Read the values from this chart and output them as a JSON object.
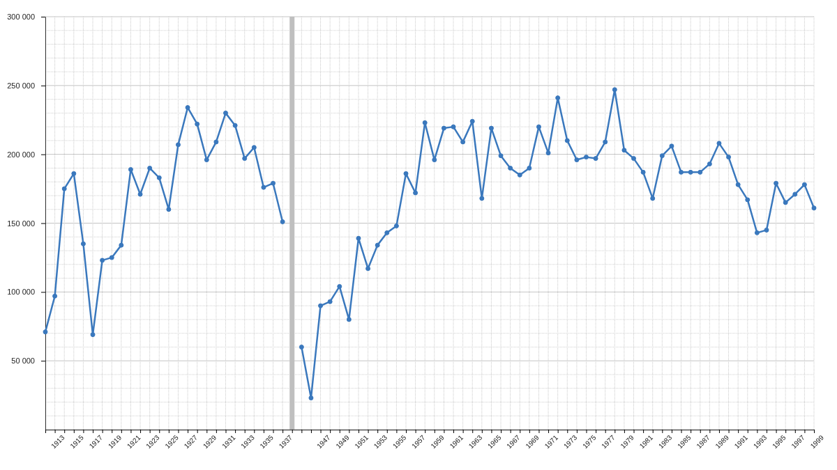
{
  "chart_data": {
    "type": "line",
    "categories": [
      null,
      "1913",
      null,
      "1915",
      null,
      "1917",
      null,
      "1919",
      null,
      "1921",
      null,
      "1923",
      null,
      "1925",
      null,
      "1927",
      null,
      "1929",
      null,
      "1931",
      null,
      "1933",
      null,
      "1935",
      null,
      "1937",
      null,
      null,
      null,
      "1947",
      null,
      "1949",
      null,
      "1951",
      null,
      "1953",
      null,
      "1955",
      null,
      "1957",
      null,
      "1959",
      null,
      "1961",
      null,
      "1963",
      null,
      "1965",
      null,
      "1967",
      null,
      "1969",
      null,
      "1971",
      null,
      "1973",
      null,
      "1975",
      null,
      "1977",
      null,
      "1979",
      null,
      "1981",
      null,
      "1983",
      null,
      "1985",
      null,
      "1987",
      null,
      "1989",
      null,
      "1991",
      null,
      "1993",
      null,
      "1995",
      null,
      "1997",
      null,
      "1999"
    ],
    "series": [
      {
        "color": "#3a78bd",
        "values": [
          71000,
          97000,
          175000,
          186000,
          135000,
          69000,
          123000,
          125000,
          134000,
          189000,
          171000,
          190000,
          183000,
          160000,
          207000,
          234000,
          222000,
          196000,
          209000,
          230000,
          221000,
          197000,
          205000,
          176000,
          179000,
          151000,
          null,
          60000,
          23000,
          90000,
          93000,
          104000,
          80000,
          139000,
          117000,
          134000,
          143000,
          148000,
          186000,
          172000,
          223000,
          196000,
          219000,
          220000,
          209000,
          224000,
          168000,
          219000,
          199000,
          190000,
          185000,
          190000,
          220000,
          201000,
          241000,
          210000,
          196000,
          198000,
          197000,
          209000,
          247000,
          203000,
          197000,
          187000,
          168000,
          199000,
          206000,
          187000,
          187000,
          187000,
          193000,
          208000,
          198000,
          178000,
          167000,
          143000,
          145000,
          179000,
          165000,
          171000,
          178000,
          161000
        ]
      }
    ],
    "ylim": [
      0,
      300000
    ],
    "yticks": [
      {
        "value": 10000,
        "label": null
      },
      {
        "value": 20000,
        "label": null
      },
      {
        "value": 30000,
        "label": null
      },
      {
        "value": 40000,
        "label": null
      },
      {
        "value": 50000,
        "label": "50 000"
      },
      {
        "value": 60000,
        "label": null
      },
      {
        "value": 70000,
        "label": null
      },
      {
        "value": 80000,
        "label": null
      },
      {
        "value": 90000,
        "label": null
      },
      {
        "value": 100000,
        "label": "100 000"
      },
      {
        "value": 110000,
        "label": null
      },
      {
        "value": 120000,
        "label": null
      },
      {
        "value": 130000,
        "label": null
      },
      {
        "value": 140000,
        "label": null
      },
      {
        "value": 150000,
        "label": "150 000"
      },
      {
        "value": 160000,
        "label": null
      },
      {
        "value": 170000,
        "label": null
      },
      {
        "value": 180000,
        "label": null
      },
      {
        "value": 190000,
        "label": null
      },
      {
        "value": 200000,
        "label": "200 000"
      },
      {
        "value": 210000,
        "label": null
      },
      {
        "value": 220000,
        "label": null
      },
      {
        "value": 230000,
        "label": null
      },
      {
        "value": 240000,
        "label": null
      },
      {
        "value": 250000,
        "label": "250 000"
      },
      {
        "value": 260000,
        "label": null
      },
      {
        "value": 270000,
        "label": null
      },
      {
        "value": 280000,
        "label": null
      },
      {
        "value": 290000,
        "label": null
      },
      {
        "value": 300000,
        "label": "300 000"
      }
    ],
    "grid": true,
    "marker": "circle",
    "line_style": "solid"
  }
}
